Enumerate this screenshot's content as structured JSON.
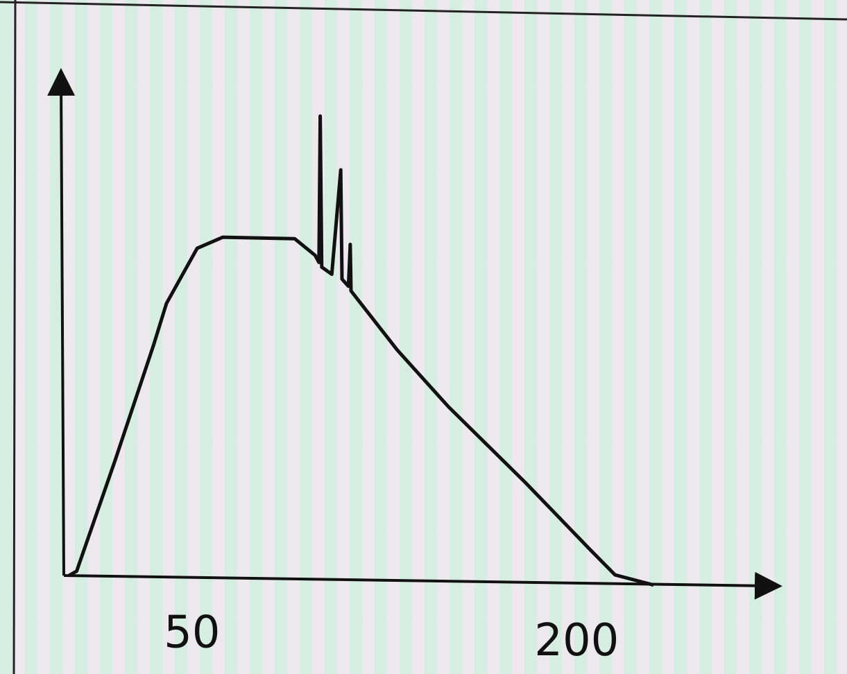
{
  "chart_data": {
    "type": "line",
    "title": "",
    "xlabel": "",
    "ylabel": "",
    "xlim": [
      0,
      270
    ],
    "ylim": [
      0,
      100
    ],
    "x_tick_labels": [
      {
        "value": 50,
        "label": "50"
      },
      {
        "value": 200,
        "label": "200"
      }
    ],
    "grid": false,
    "series": [
      {
        "color": "#111111",
        "points": [
          [
            2,
            0
          ],
          [
            5,
            1
          ],
          [
            20,
            25
          ],
          [
            35,
            50
          ],
          [
            40,
            59
          ],
          [
            52,
            71
          ],
          [
            62,
            73.5
          ],
          [
            90,
            73.5
          ],
          [
            98,
            70
          ],
          [
            99.5,
            68.5
          ],
          [
            100,
            100
          ],
          [
            100.6,
            67.5
          ],
          [
            104.5,
            66
          ],
          [
            108,
            88.5
          ],
          [
            108.5,
            65
          ],
          [
            111,
            63.5
          ],
          [
            111.7,
            72.5
          ],
          [
            112,
            62.5
          ],
          [
            130,
            50
          ],
          [
            150,
            38
          ],
          [
            180,
            22
          ],
          [
            205,
            8
          ],
          [
            215,
            2.5
          ],
          [
            230,
            0.5
          ]
        ]
      }
    ]
  }
}
